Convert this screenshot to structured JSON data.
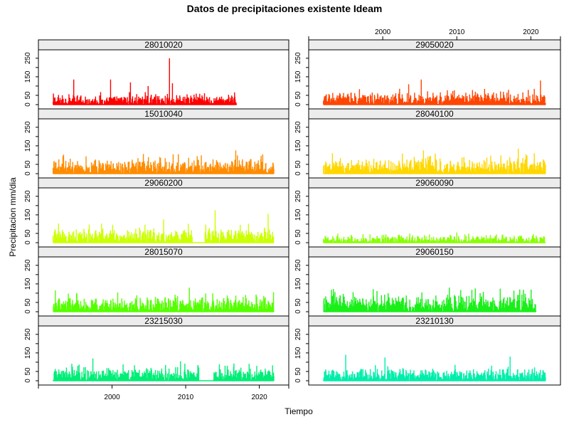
{
  "chart_data": {
    "type": "bar",
    "title": "Datos de precipitaciones existente Ideam",
    "xlabel": "Tiempo",
    "ylabel": "Precipitacion mm/dia",
    "xlim": [
      1990,
      2024
    ],
    "ylim": [
      0,
      280
    ],
    "x_ticks": [
      2000,
      2010,
      2020
    ],
    "y_ticks": [
      0,
      50,
      100,
      150,
      200,
      250
    ],
    "y_tick_labels": [
      "0",
      "50",
      "",
      "150",
      "",
      "250"
    ],
    "grid": false,
    "layout": "2 columns x 5 rows, shared axes",
    "panels": [
      {
        "name": "28010020",
        "color": "#FF0000",
        "start": 1992.0,
        "end": 2016.9,
        "gaps": [],
        "typical_peak": 55,
        "max_value": 250,
        "max_year": 2007.8,
        "notable_peaks": [
          [
            1994.8,
            135
          ],
          [
            1999.8,
            135
          ],
          [
            2002.5,
            120
          ],
          [
            2004.9,
            100
          ],
          [
            2008.2,
            115
          ]
        ]
      },
      {
        "name": "29050020",
        "color": "#FF4500",
        "start": 1992.0,
        "end": 2022.0,
        "gaps": [],
        "typical_peak": 70,
        "max_value": 135,
        "max_year": 2005.2,
        "notable_peaks": [
          [
            2021.3,
            130
          ],
          [
            2003.5,
            110
          ]
        ]
      },
      {
        "name": "15010040",
        "color": "#FF8C00",
        "start": 1992.0,
        "end": 2022.0,
        "gaps": [],
        "typical_peak": 85,
        "max_value": 125,
        "max_year": 2016.8,
        "notable_peaks": [
          [
            2009.0,
            105
          ]
        ]
      },
      {
        "name": "28040100",
        "color": "#FFD700",
        "start": 1992.0,
        "end": 2022.0,
        "gaps": [],
        "typical_peak": 90,
        "max_value": 135,
        "max_year": 2018.3,
        "notable_peaks": [
          [
            2005.5,
            125
          ]
        ]
      },
      {
        "name": "29060200",
        "color": "#CCFF00",
        "start": 1992.0,
        "end": 2022.0,
        "gaps": [
          [
            2010.9,
            2012.6
          ]
        ],
        "typical_peak": 85,
        "max_value": 175,
        "max_year": 2014.0,
        "notable_peaks": [
          [
            2021.2,
            155
          ],
          [
            2007.0,
            125
          ]
        ]
      },
      {
        "name": "29060090",
        "color": "#88FF00",
        "start": 1992.0,
        "end": 2022.0,
        "gaps": [],
        "typical_peak": 40,
        "max_value": 55,
        "max_year": 2010.0,
        "notable_peaks": []
      },
      {
        "name": "28015070",
        "color": "#55FF00",
        "start": 1992.0,
        "end": 2022.0,
        "gaps": [],
        "typical_peak": 85,
        "max_value": 130,
        "max_year": 2010.5,
        "notable_peaks": [
          [
            1992.3,
            115
          ]
        ]
      },
      {
        "name": "29060150",
        "color": "#1AEF1A",
        "start": 1992.0,
        "end": 2020.7,
        "gaps": [],
        "typical_peak": 100,
        "max_value": 130,
        "max_year": 2009.0,
        "notable_peaks": [
          [
            2012.5,
            125
          ],
          [
            2018.5,
            120
          ]
        ]
      },
      {
        "name": "23215030",
        "color": "#00EE77",
        "start": 1992.0,
        "end": 2022.0,
        "gaps": [
          [
            2011.8,
            2013.8
          ]
        ],
        "typical_peak": 75,
        "max_value": 120,
        "max_year": 1997.4,
        "notable_peaks": [
          [
            2009.3,
            105
          ]
        ]
      },
      {
        "name": "23210130",
        "color": "#00EEAA",
        "start": 1992.0,
        "end": 2022.0,
        "gaps": [],
        "typical_peak": 70,
        "max_value": 140,
        "max_year": 1995.0,
        "notable_peaks": [
          [
            2017.2,
            130
          ],
          [
            2000.3,
            125
          ]
        ]
      }
    ]
  }
}
